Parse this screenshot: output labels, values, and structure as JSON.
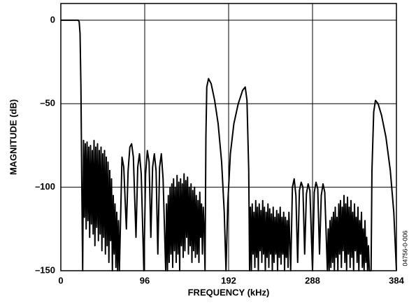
{
  "chart_data": {
    "type": "line",
    "xlabel": "FREQUENCY (kHz)",
    "ylabel": "MAGNITUDE (dB)",
    "annotation": "04756-0-006",
    "xlim": [
      0,
      384
    ],
    "xticks": [
      0,
      96,
      192,
      288,
      384
    ],
    "ylim": [
      -150,
      10
    ],
    "yticks": [
      0,
      {
        "value": -50,
        "label": "–50"
      },
      {
        "value": -100,
        "label": "–100"
      },
      {
        "value": -150,
        "label": "–150"
      }
    ],
    "grid": true,
    "color": "#000000",
    "x": [
      0,
      10,
      20,
      21,
      22,
      23,
      24,
      25,
      26,
      27,
      28,
      29,
      30,
      31,
      32,
      33,
      34,
      35,
      36,
      37,
      38,
      39,
      40,
      41,
      42,
      43,
      44,
      45,
      46,
      47,
      48,
      49,
      50,
      51,
      52,
      53,
      54,
      55,
      56,
      57,
      58,
      59,
      60,
      61,
      62,
      63,
      64,
      65,
      66,
      67,
      70,
      72,
      75,
      77,
      79,
      81,
      83,
      86,
      88,
      90,
      92,
      95,
      97,
      99,
      101,
      103,
      105,
      107,
      109,
      111,
      113,
      115,
      117,
      120,
      121,
      122,
      123,
      124,
      125,
      126,
      127,
      128,
      129,
      130,
      131,
      132,
      133,
      134,
      135,
      136,
      137,
      138,
      139,
      140,
      141,
      142,
      143,
      144,
      145,
      146,
      147,
      148,
      149,
      150,
      151,
      152,
      153,
      154,
      155,
      156,
      157,
      158,
      159,
      160,
      161,
      162,
      163,
      164,
      165,
      166,
      167,
      169,
      172,
      176,
      180,
      184,
      187,
      189,
      191,
      194,
      198,
      203,
      208,
      211,
      213,
      215,
      216,
      217,
      218,
      219,
      220,
      221,
      222,
      223,
      224,
      225,
      226,
      227,
      228,
      229,
      230,
      231,
      232,
      233,
      234,
      235,
      236,
      237,
      238,
      239,
      240,
      241,
      242,
      243,
      244,
      245,
      246,
      247,
      248,
      249,
      250,
      251,
      252,
      253,
      254,
      255,
      256,
      257,
      258,
      259,
      260,
      261,
      263,
      265,
      267,
      269,
      271,
      273,
      275,
      277,
      279,
      281,
      283,
      285,
      288,
      290,
      292,
      294,
      296,
      298,
      300,
      302,
      305,
      306,
      307,
      308,
      309,
      310,
      311,
      312,
      313,
      314,
      315,
      316,
      317,
      318,
      319,
      320,
      321,
      322,
      323,
      324,
      325,
      326,
      327,
      328,
      329,
      330,
      331,
      332,
      333,
      334,
      335,
      336,
      337,
      338,
      339,
      340,
      341,
      342,
      343,
      344,
      345,
      346,
      347,
      348,
      349,
      350,
      351,
      352,
      353,
      355,
      356,
      358,
      360,
      363,
      367,
      372,
      377,
      381,
      384
    ],
    "values": [
      0,
      0,
      0,
      -1,
      -8,
      -40,
      -100,
      -150,
      -72,
      -118,
      -74,
      -125,
      -73,
      -120,
      -76,
      -130,
      -75,
      -122,
      -78,
      -128,
      -72,
      -135,
      -76,
      -124,
      -74,
      -132,
      -78,
      -128,
      -76,
      -138,
      -80,
      -130,
      -78,
      -140,
      -82,
      -135,
      -85,
      -145,
      -90,
      -132,
      -95,
      -150,
      -105,
      -140,
      -110,
      -148,
      -115,
      -150,
      -120,
      -150,
      -82,
      -88,
      -125,
      -90,
      -76,
      -74,
      -82,
      -130,
      -88,
      -80,
      -92,
      -150,
      -92,
      -78,
      -85,
      -130,
      -88,
      -80,
      -90,
      -140,
      -88,
      -80,
      -95,
      -150,
      -110,
      -150,
      -105,
      -145,
      -100,
      -140,
      -98,
      -148,
      -95,
      -138,
      -100,
      -145,
      -93,
      -140,
      -97,
      -150,
      -95,
      -135,
      -98,
      -142,
      -92,
      -138,
      -96,
      -130,
      -94,
      -140,
      -100,
      -135,
      -98,
      -145,
      -102,
      -138,
      -100,
      -142,
      -105,
      -140,
      -108,
      -145,
      -103,
      -130,
      -110,
      -140,
      -112,
      -125,
      -150,
      -70,
      -40,
      -35,
      -38,
      -48,
      -62,
      -85,
      -115,
      -150,
      -110,
      -80,
      -62,
      -50,
      -42,
      -40,
      -48,
      -90,
      -150,
      -112,
      -150,
      -110,
      -140,
      -115,
      -148,
      -108,
      -142,
      -112,
      -150,
      -110,
      -138,
      -114,
      -145,
      -108,
      -140,
      -112,
      -150,
      -115,
      -142,
      -110,
      -148,
      -113,
      -140,
      -116,
      -150,
      -112,
      -145,
      -118,
      -140,
      -114,
      -150,
      -116,
      -142,
      -112,
      -146,
      -118,
      -140,
      -115,
      -150,
      -118,
      -142,
      -120,
      -148,
      -115,
      -150,
      -100,
      -95,
      -105,
      -145,
      -102,
      -97,
      -100,
      -140,
      -104,
      -98,
      -102,
      -150,
      -103,
      -97,
      -101,
      -140,
      -105,
      -98,
      -103,
      -150,
      -125,
      -150,
      -120,
      -148,
      -118,
      -145,
      -115,
      -150,
      -112,
      -142,
      -118,
      -150,
      -110,
      -140,
      -108,
      -148,
      -112,
      -138,
      -105,
      -145,
      -110,
      -150,
      -106,
      -140,
      -112,
      -148,
      -108,
      -142,
      -115,
      -150,
      -110,
      -138,
      -118,
      -145,
      -112,
      -150,
      -120,
      -140,
      -115,
      -148,
      -125,
      -150,
      -120,
      -145,
      -130,
      -150,
      -135,
      -150,
      -150,
      -90,
      -55,
      -48,
      -50,
      -57,
      -70,
      -90,
      -115,
      -150
    ]
  }
}
